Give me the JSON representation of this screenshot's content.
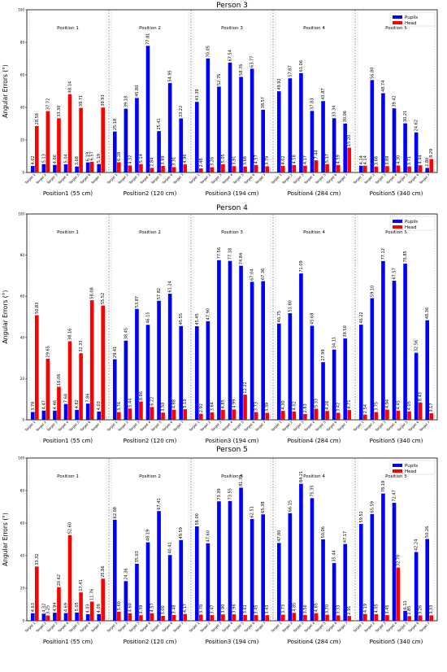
{
  "chart_data": [
    {
      "type": "bar",
      "title": "Person 3",
      "ylabel": "Angular Errors (°)",
      "ylim": [
        0,
        100
      ],
      "yticks": [
        0,
        20,
        40,
        60,
        80,
        100
      ],
      "legend": {
        "placement": "top-right",
        "entries": [
          "Pupils",
          "Head"
        ]
      },
      "colors": {
        "Pupils": "#0000ff",
        "Head": "#ff0000"
      },
      "groups": [
        {
          "label": "Position1 (55 cm)",
          "panel": "Position 1"
        },
        {
          "label": "Position2 (120 cm)",
          "panel": "Position 2"
        },
        {
          "label": "Position3 (194 cm)",
          "panel": "Position 3"
        },
        {
          "label": "Position4 (284 cm)",
          "panel": "Position 4"
        },
        {
          "label": "Position5 (340 cm)",
          "panel": "Position 5"
        }
      ],
      "categories": [
        "Target 1",
        "Target 2",
        "Target 3",
        "Target 4",
        "Target 5",
        "Target 6",
        "Target 7"
      ],
      "series": [
        {
          "name": "Pupils",
          "values": [
            [
              4.02,
              5.13,
              4.66,
              5.04,
              3.68,
              6.19,
              5.19
            ],
            [
              25.18,
              39.18,
              45.8,
              77.81,
              25.41,
              54.95,
              33.22
            ],
            [
              43.39,
              70.05,
              52.76,
              67.54,
              58.76,
              63.77,
              38.57
            ],
            [
              49.92,
              57.87,
              61.06,
              37.83,
              43.87,
              33.34,
              30.06
            ],
            [
              4.14,
              56.8,
              48.74,
              39.42,
              30.21,
              24.62,
              2.8
            ]
          ]
        },
        {
          "name": "Head",
          "values": [
            [
              28.58,
              37.72,
              33.3,
              48.14,
              39.71,
              6.57,
              39.93
            ],
            [
              6.28,
              4.32,
              5.14,
              2.84,
              3.99,
              3.31,
              4.96
            ],
            [
              2.48,
              3.26,
              5.05,
              3.91,
              3.68,
              4.57,
              3.79
            ],
            [
              4.02,
              4.58,
              4.17,
              7.44,
              5.17,
              4.59,
              15.2
            ],
            [
              4.14,
              3.68,
              3.89,
              4.3,
              3.71,
              4.44,
              8.29
            ]
          ]
        }
      ]
    },
    {
      "type": "bar",
      "title": "Person 4",
      "ylabel": "Angular Errors (°)",
      "ylim": [
        0,
        100
      ],
      "yticks": [
        0,
        20,
        40,
        60,
        80,
        100
      ],
      "legend": {
        "placement": "top-right",
        "entries": [
          "Pupils",
          "Head"
        ]
      },
      "colors": {
        "Pupils": "#0000ff",
        "Head": "#ff0000"
      },
      "groups": [
        {
          "label": "Position1 (55 cm)",
          "panel": "Position 1"
        },
        {
          "label": "Position2 (120 cm)",
          "panel": "Position 2"
        },
        {
          "label": "Position3 (194 cm)",
          "panel": "Position 3"
        },
        {
          "label": "Position4 (284 cm)",
          "panel": "Position 4"
        },
        {
          "label": "Position5 (340 cm)",
          "panel": "Position 5"
        }
      ],
      "categories": [
        "Target 1",
        "Target 2",
        "Target 3",
        "Target 4",
        "Target 5",
        "Target 6",
        "Target 7"
      ],
      "series": [
        {
          "name": "Pupils",
          "values": [
            [
              3.79,
              4.47,
              4.46,
              7.68,
              4.82,
              7.86,
              4.03
            ],
            [
              29.41,
              38.45,
              53.87,
              46.15,
              57.82,
              61.24,
              45.55
            ],
            [
              45.45,
              47.9,
              77.56,
              77.18,
              74.84,
              67.04,
              67.36
            ],
            [
              46.75,
              51.8,
              71.09,
              45.68,
              27.99,
              34.11,
              39.5
            ],
            [
              46.22,
              59.1,
              77.12,
              67.57,
              75.85,
              32.56,
              48.36
            ]
          ]
        },
        {
          "name": "Head",
          "values": [
            [
              50.83,
              29.65,
              16.06,
              38.16,
              32.33,
              58.08,
              55.52
            ],
            [
              3.76,
              5.44,
              8.86,
              6.22,
              3.5,
              4.88,
              5.1
            ],
            [
              2.92,
              3.64,
              4.85,
              4.99,
              12.22,
              3.73,
              3.39
            ],
            [
              4.3,
              4.02,
              2.83,
              5.33,
              4.26,
              3.42,
              4.71
            ],
            [
              2.54,
              3.75,
              4.94,
              4.45,
              4.05,
              8.43,
              3.17
            ]
          ]
        }
      ]
    },
    {
      "type": "bar",
      "title": "Person 5",
      "ylabel": "Angular Errors (°)",
      "ylim": [
        0,
        100
      ],
      "yticks": [
        0,
        20,
        40,
        60,
        80,
        100
      ],
      "legend": {
        "placement": "top-right",
        "entries": [
          "Pupils",
          "Head"
        ]
      },
      "colors": {
        "Pupils": "#0000ff",
        "Head": "#ff0000"
      },
      "groups": [
        {
          "label": "Position1 (55 cm)",
          "panel": "Position 1"
        },
        {
          "label": "Position2 (120 cm)",
          "panel": "Position 2"
        },
        {
          "label": "Position3 (194 cm)",
          "panel": "Position 3"
        },
        {
          "label": "Position4 (284 cm)",
          "panel": "Position 4"
        },
        {
          "label": "Position5 (340 cm)",
          "panel": "Position 5"
        }
      ],
      "categories": [
        "Target 1",
        "Target 2",
        "Target 3",
        "Target 4",
        "Target 5",
        "Target 6",
        "Target 7"
      ],
      "series": [
        {
          "name": "Pupils",
          "values": [
            [
              4.63,
              4.32,
              4.94,
              4.69,
              5.05,
              4.03,
              4.09
            ],
            [
              62.08,
              24.36,
              35.03,
              48.19,
              67.41,
              40.41,
              49.59
            ],
            [
              58.0,
              47.6,
              73.39,
              73.55,
              81.79,
              62.51,
              65.38
            ],
            [
              47.8,
              66.15,
              84.21,
              75.35,
              50.06,
              35.44,
              47.17
            ],
            [
              59.52,
              65.59,
              78.19,
              72.47,
              6.11,
              42.24,
              50.26
            ]
          ]
        },
        {
          "name": "Head",
          "values": [
            [
              33.32,
              3.25,
              20.62,
              52.6,
              17.41,
              11.76,
              25.86
            ],
            [
              5.6,
              4.6,
              3.39,
              4.57,
              3.0,
              3.48,
              4.17
            ],
            [
              3.78,
              3.47,
              3.9,
              3.96,
              3.61,
              3.45,
              3.43
            ],
            [
              3.73,
              4.85,
              3.56,
              4.65,
              3.7,
              3.33,
              2.91
            ],
            [
              4.19,
              4.05,
              3.45,
              32.7,
              2.85,
              3.26,
              3.33
            ]
          ]
        }
      ]
    }
  ]
}
